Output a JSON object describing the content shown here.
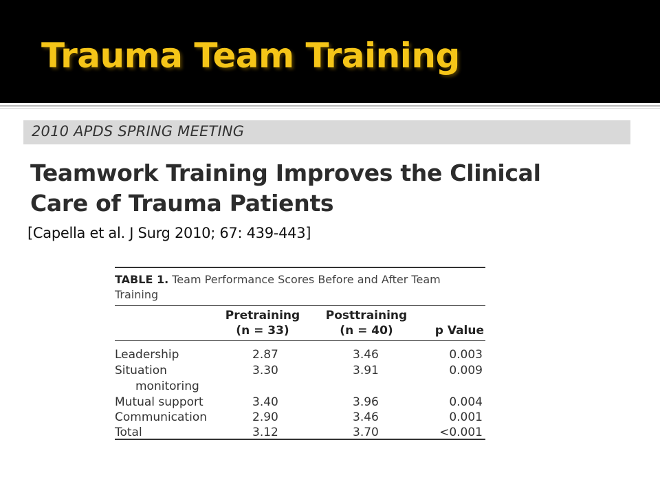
{
  "slide": {
    "title": "Trauma Team Training",
    "banner": "2010 APDS SPRING MEETING",
    "paper_title_line1": "Teamwork Training Improves the Clinical",
    "paper_title_line2": "Care of Trauma Patients",
    "citation": "[Capella et al. J Surg 2010; 67: 439-443]"
  },
  "table": {
    "caption_label": "TABLE 1.",
    "caption_text": " Team Performance Scores Before and After Team Training",
    "headers": {
      "pre_line1": "Pretraining",
      "pre_line2": "(n = 33)",
      "post_line1": "Posttraining",
      "post_line2": "(n = 40)",
      "p": "p Value"
    },
    "rows": [
      {
        "label": "Leadership",
        "pre": "2.87",
        "post": "3.46",
        "p": "0.003"
      },
      {
        "label": "Situation",
        "label2": "monitoring",
        "pre": "3.30",
        "post": "3.91",
        "p": "0.009"
      },
      {
        "label": "Mutual support",
        "pre": "3.40",
        "post": "3.96",
        "p": "0.004"
      },
      {
        "label": "Communication",
        "pre": "2.90",
        "post": "3.46",
        "p": "0.001"
      },
      {
        "label": "Total",
        "pre": "3.12",
        "post": "3.70",
        "p": "<0.001"
      }
    ]
  },
  "colors": {
    "header_bg": "#000000",
    "title_color": "#f5c518",
    "banner_bg": "#d9d9d9"
  }
}
